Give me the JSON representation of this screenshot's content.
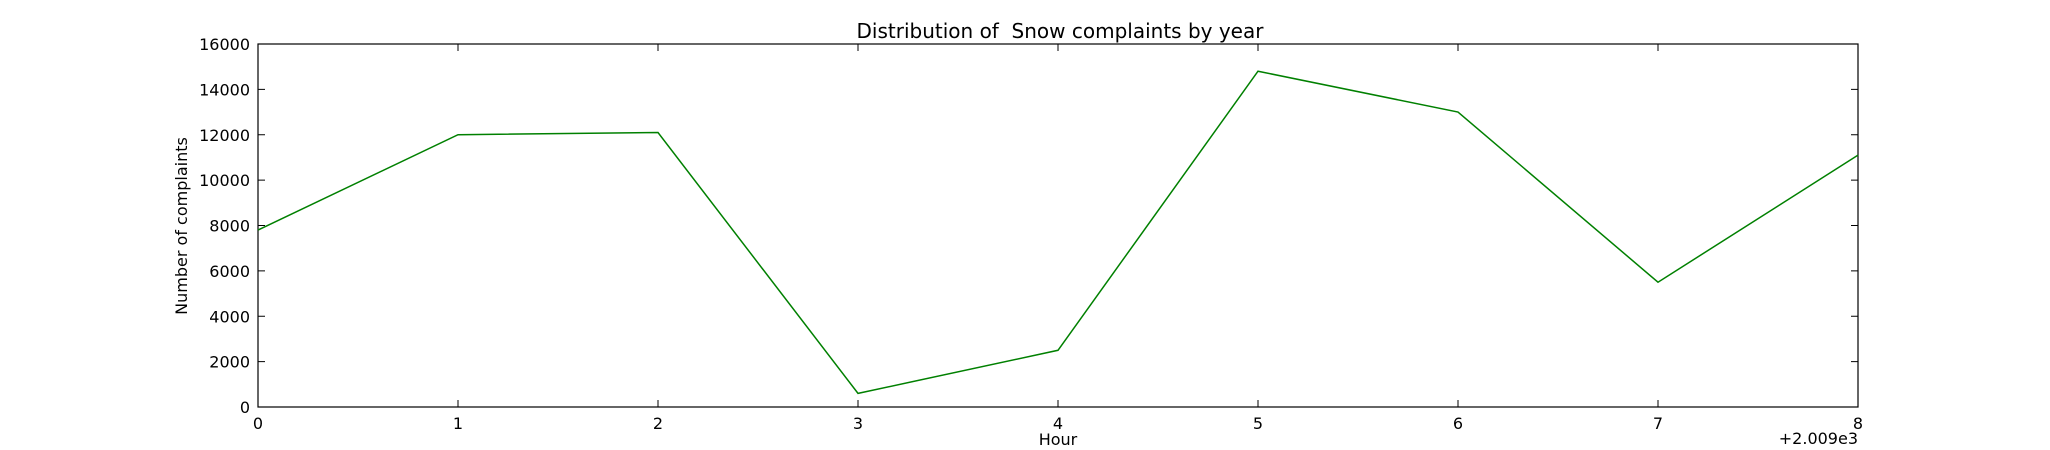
{
  "chart_data": {
    "type": "line",
    "title": "Distribution of  Snow complaints by year",
    "xlabel": "Hour",
    "ylabel": "Number of complaints",
    "x_offset_label": "+2.009e3",
    "x": [
      0,
      1,
      2,
      3,
      4,
      5,
      6,
      7,
      8
    ],
    "x_ticks": [
      "0",
      "1",
      "2",
      "3",
      "4",
      "5",
      "6",
      "7",
      "8"
    ],
    "xlim": [
      0,
      8
    ],
    "ylim": [
      0,
      16000
    ],
    "y_ticks": [
      "0",
      "2000",
      "4000",
      "6000",
      "8000",
      "10000",
      "12000",
      "14000",
      "16000"
    ],
    "grid": false,
    "series": [
      {
        "color": "#008000",
        "values": [
          7800,
          12000,
          12100,
          600,
          2500,
          14800,
          13000,
          5500,
          11100
        ]
      }
    ]
  }
}
